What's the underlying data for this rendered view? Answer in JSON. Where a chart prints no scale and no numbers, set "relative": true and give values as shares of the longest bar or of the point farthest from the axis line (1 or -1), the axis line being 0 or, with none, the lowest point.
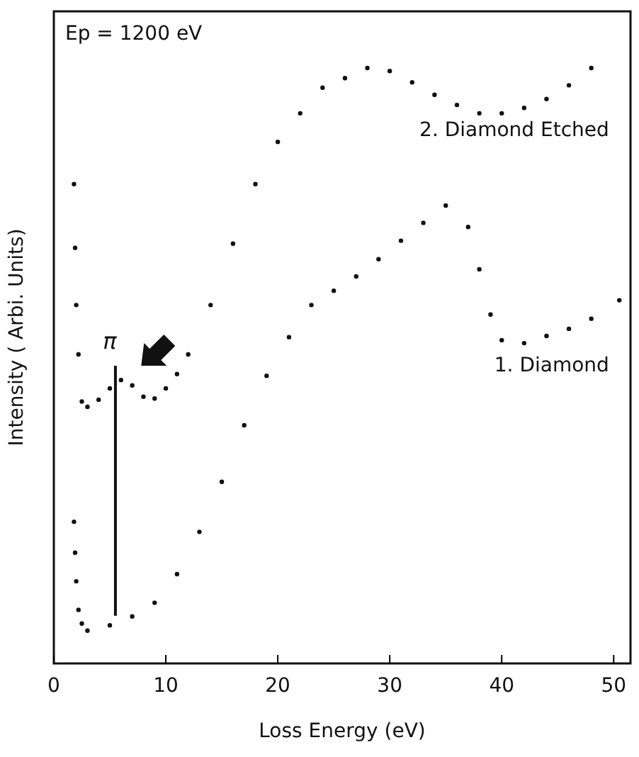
{
  "chart_data": {
    "type": "scatter",
    "relative": true,
    "xlabel": "Loss Energy (eV)",
    "ylabel": "Intensity ( Arbi. Units)",
    "xlim": [
      0,
      51.5
    ],
    "xticks": [
      0,
      10,
      20,
      30,
      40,
      50
    ],
    "tick_labels": "x",
    "marker": "circle",
    "annotations": [
      "Ep = 1200 eV"
    ],
    "ref_lines": [
      {
        "axis": "x",
        "value": 5.5,
        "label": "π"
      }
    ],
    "series": [
      {
        "name": "2. Diamond Etched",
        "color": "#111111",
        "x": [
          1.8,
          1.9,
          2.0,
          2.2,
          2.5,
          3,
          4,
          5,
          6,
          7,
          8,
          9,
          10,
          11,
          12,
          14,
          16,
          18,
          20,
          22,
          24,
          26,
          28,
          30,
          32,
          34,
          36,
          38,
          40,
          42,
          44,
          46,
          48
        ],
        "values": [
          0.805,
          0.698,
          0.602,
          0.519,
          0.44,
          0.431,
          0.443,
          0.462,
          0.476,
          0.467,
          0.448,
          0.445,
          0.462,
          0.486,
          0.519,
          0.602,
          0.705,
          0.805,
          0.876,
          0.924,
          0.967,
          0.983,
          1.0,
          0.995,
          0.976,
          0.955,
          0.938,
          0.924,
          0.924,
          0.933,
          0.948,
          0.971,
          1.0
        ]
      },
      {
        "name": "1. Diamond",
        "color": "#111111",
        "x": [
          1.8,
          1.9,
          2.0,
          2.2,
          2.5,
          3,
          5,
          7,
          9,
          11,
          13,
          15,
          17,
          19,
          21,
          23,
          25,
          27,
          29,
          31,
          33,
          35,
          37,
          38,
          39,
          40,
          42,
          44,
          46,
          48,
          50.5
        ],
        "values": [
          0.238,
          0.186,
          0.138,
          0.09,
          0.067,
          0.055,
          0.064,
          0.079,
          0.102,
          0.15,
          0.221,
          0.305,
          0.4,
          0.483,
          0.548,
          0.602,
          0.626,
          0.65,
          0.679,
          0.71,
          0.74,
          0.769,
          0.733,
          0.662,
          0.586,
          0.543,
          0.538,
          0.55,
          0.562,
          0.579,
          0.61
        ]
      }
    ]
  }
}
